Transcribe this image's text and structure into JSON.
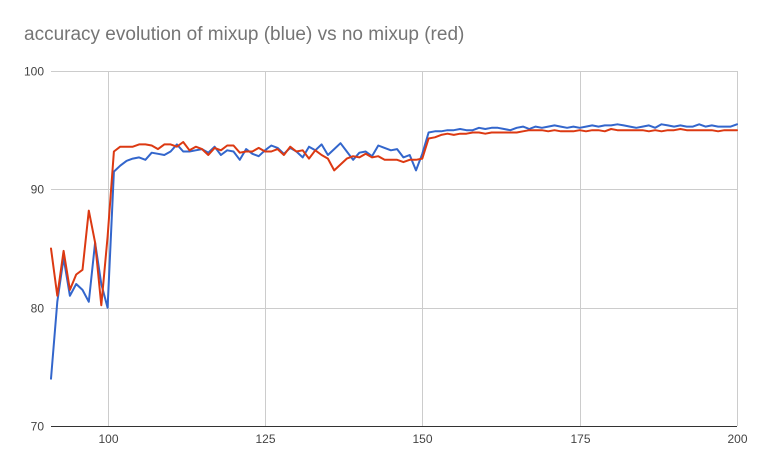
{
  "chart_data": {
    "type": "line",
    "title": "accuracy evolution of mixup (blue) vs no mixup (red)",
    "xlabel": "",
    "ylabel": "",
    "xlim": [
      91,
      200
    ],
    "ylim": [
      70,
      100
    ],
    "x_ticks": [
      100,
      125,
      150,
      175,
      200
    ],
    "y_ticks": [
      70,
      80,
      90,
      100
    ],
    "grid": true,
    "legend": "none",
    "series": [
      {
        "color": "#3366cc",
        "x": [
          91,
          92,
          93,
          94,
          95,
          96,
          97,
          98,
          99,
          100,
          101,
          102,
          103,
          104,
          105,
          106,
          107,
          108,
          109,
          110,
          111,
          112,
          113,
          114,
          115,
          116,
          117,
          118,
          119,
          120,
          121,
          122,
          123,
          124,
          125,
          126,
          127,
          128,
          129,
          130,
          131,
          132,
          133,
          134,
          135,
          136,
          137,
          138,
          139,
          140,
          141,
          142,
          143,
          144,
          145,
          146,
          147,
          148,
          149,
          150,
          151,
          152,
          153,
          154,
          155,
          156,
          157,
          158,
          159,
          160,
          161,
          162,
          163,
          164,
          165,
          166,
          167,
          168,
          169,
          170,
          171,
          172,
          173,
          174,
          175,
          176,
          177,
          178,
          179,
          180,
          181,
          182,
          183,
          184,
          185,
          186,
          187,
          188,
          189,
          190,
          191,
          192,
          193,
          194,
          195,
          196,
          197,
          198,
          199,
          200
        ],
        "y": [
          74.0,
          80.5,
          84.2,
          81.0,
          82.0,
          81.5,
          80.5,
          85.5,
          82.0,
          80.0,
          91.5,
          92.0,
          92.4,
          92.6,
          92.7,
          92.5,
          93.1,
          93.0,
          92.9,
          93.2,
          93.8,
          93.2,
          93.2,
          93.3,
          93.4,
          93.1,
          93.6,
          92.9,
          93.3,
          93.2,
          92.5,
          93.4,
          93.0,
          92.8,
          93.3,
          93.7,
          93.5,
          93.0,
          93.5,
          93.2,
          92.7,
          93.6,
          93.3,
          93.8,
          92.9,
          93.4,
          93.9,
          93.2,
          92.5,
          93.1,
          93.2,
          92.8,
          93.7,
          93.5,
          93.3,
          93.4,
          92.7,
          92.9,
          91.6,
          93.0,
          94.8,
          94.9,
          94.9,
          95.0,
          95.0,
          95.1,
          95.0,
          95.0,
          95.2,
          95.1,
          95.2,
          95.2,
          95.1,
          95.0,
          95.2,
          95.3,
          95.1,
          95.3,
          95.2,
          95.3,
          95.4,
          95.3,
          95.2,
          95.3,
          95.2,
          95.3,
          95.4,
          95.3,
          95.4,
          95.4,
          95.5,
          95.4,
          95.3,
          95.2,
          95.3,
          95.4,
          95.2,
          95.5,
          95.4,
          95.3,
          95.4,
          95.3,
          95.3,
          95.5,
          95.3,
          95.4,
          95.3,
          95.3,
          95.3,
          95.5
        ]
      },
      {
        "color": "#dc3912",
        "x": [
          91,
          92,
          93,
          94,
          95,
          96,
          97,
          98,
          99,
          100,
          101,
          102,
          103,
          104,
          105,
          106,
          107,
          108,
          109,
          110,
          111,
          112,
          113,
          114,
          115,
          116,
          117,
          118,
          119,
          120,
          121,
          122,
          123,
          124,
          125,
          126,
          127,
          128,
          129,
          130,
          131,
          132,
          133,
          134,
          135,
          136,
          137,
          138,
          139,
          140,
          141,
          142,
          143,
          144,
          145,
          146,
          147,
          148,
          149,
          150,
          151,
          152,
          153,
          154,
          155,
          156,
          157,
          158,
          159,
          160,
          161,
          162,
          163,
          164,
          165,
          166,
          167,
          168,
          169,
          170,
          171,
          172,
          173,
          174,
          175,
          176,
          177,
          178,
          179,
          180,
          181,
          182,
          183,
          184,
          185,
          186,
          187,
          188,
          189,
          190,
          191,
          192,
          193,
          194,
          195,
          196,
          197,
          198,
          199,
          200
        ],
        "y": [
          85.0,
          81.0,
          84.8,
          81.5,
          82.8,
          83.2,
          88.2,
          85.5,
          80.2,
          86.0,
          93.2,
          93.6,
          93.6,
          93.6,
          93.8,
          93.8,
          93.7,
          93.4,
          93.8,
          93.8,
          93.6,
          94.0,
          93.3,
          93.6,
          93.4,
          92.9,
          93.5,
          93.3,
          93.7,
          93.7,
          93.1,
          93.2,
          93.2,
          93.5,
          93.2,
          93.2,
          93.4,
          92.9,
          93.6,
          93.2,
          93.3,
          92.6,
          93.3,
          92.9,
          92.6,
          91.6,
          92.1,
          92.6,
          92.8,
          92.7,
          93.0,
          92.7,
          92.8,
          92.5,
          92.5,
          92.5,
          92.3,
          92.5,
          92.5,
          92.6,
          94.3,
          94.4,
          94.6,
          94.7,
          94.6,
          94.7,
          94.7,
          94.8,
          94.8,
          94.7,
          94.8,
          94.8,
          94.8,
          94.8,
          94.8,
          94.9,
          95.0,
          95.0,
          95.0,
          94.9,
          95.0,
          94.9,
          94.9,
          94.9,
          95.0,
          94.9,
          95.0,
          95.0,
          94.9,
          95.1,
          95.0,
          95.0,
          95.0,
          95.0,
          95.0,
          94.9,
          95.0,
          94.9,
          95.0,
          95.0,
          95.1,
          95.0,
          95.0,
          95.0,
          95.0,
          95.0,
          94.9,
          95.0,
          95.0,
          95.0
        ]
      }
    ]
  }
}
